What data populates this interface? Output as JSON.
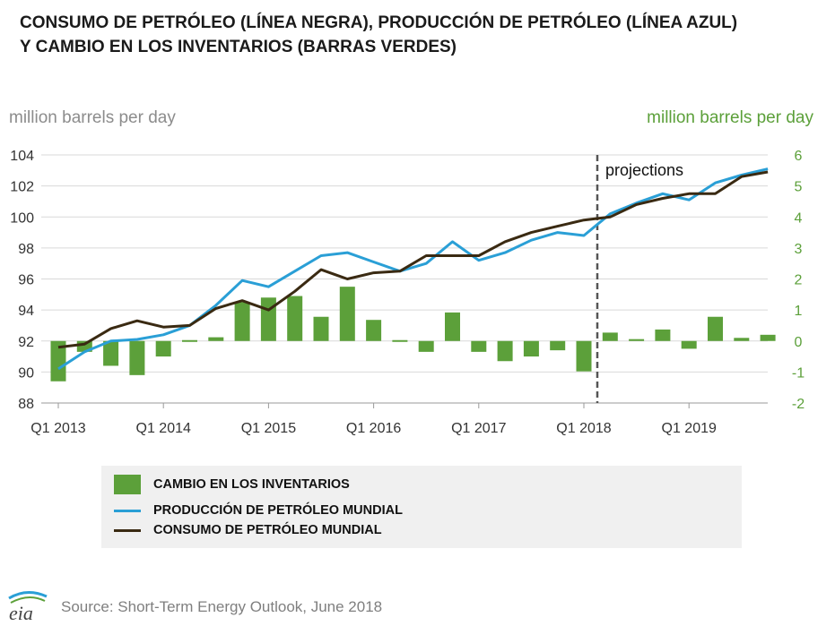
{
  "title": {
    "line1": "CONSUMO DE PETRÓLEO (LÍNEA NEGRA), PRODUCCIÓN DE PETRÓLEO (LÍNEA AZUL)",
    "line2": "Y CAMBIO EN LOS INVENTARIOS (BARRAS VERDES)"
  },
  "axes": {
    "left_unit": "million barrels per day",
    "right_unit": "million barrels per day"
  },
  "annotation": {
    "projections": "projections"
  },
  "legend": {
    "inventory": "CAMBIO EN LOS INVENTARIOS",
    "production": "PRODUCCIÓN DE PETRÓLEO MUNDIAL",
    "consumption": "CONSUMO DE PETRÓLEO MUNDIAL"
  },
  "source": "Source: Short-Term Energy Outlook, June 2018",
  "logo": {
    "text": "eia"
  },
  "colors": {
    "production": "#2a9fd6",
    "consumption": "#3a2a12",
    "inventory": "#5ca03a",
    "left_axis_text": "#8c8c8c",
    "right_axis_text": "#5ca03a",
    "projection_line": "#555555"
  },
  "chart_data": {
    "type": "bar+line",
    "x": [
      "Q1 2013",
      "Q2 2013",
      "Q3 2013",
      "Q4 2013",
      "Q1 2014",
      "Q2 2014",
      "Q3 2014",
      "Q4 2014",
      "Q1 2015",
      "Q2 2015",
      "Q3 2015",
      "Q4 2015",
      "Q1 2016",
      "Q2 2016",
      "Q3 2016",
      "Q4 2016",
      "Q1 2017",
      "Q2 2017",
      "Q3 2017",
      "Q4 2017",
      "Q1 2018",
      "Q2 2018",
      "Q3 2018",
      "Q4 2018",
      "Q1 2019",
      "Q2 2019",
      "Q3 2019",
      "Q4 2019"
    ],
    "x_tick_labels": [
      "Q1 2013",
      "Q1 2014",
      "Q1 2015",
      "Q1 2016",
      "Q1 2017",
      "Q1 2018",
      "Q1 2019"
    ],
    "y_left": {
      "ticks": [
        88,
        90,
        92,
        94,
        96,
        98,
        100,
        102,
        104
      ],
      "range": [
        88,
        104
      ]
    },
    "y_right": {
      "ticks": [
        -2,
        -1,
        0,
        1,
        2,
        3,
        4,
        5,
        6
      ],
      "range": [
        -2,
        6
      ]
    },
    "projection_start": "Q1 2018",
    "series": [
      {
        "name": "CAMBIO EN LOS INVENTARIOS",
        "type": "bar",
        "axis": "right",
        "values": [
          -1.3,
          -0.35,
          -0.8,
          -1.1,
          -0.5,
          0.0,
          0.12,
          1.25,
          1.4,
          1.45,
          0.78,
          1.75,
          0.68,
          0.0,
          -0.35,
          0.92,
          -0.35,
          -0.65,
          -0.5,
          -0.3,
          -0.98,
          0.27,
          0.06,
          0.37,
          -0.25,
          0.78,
          0.1,
          0.2
        ]
      },
      {
        "name": "PRODUCCIÓN DE PETRÓLEO MUNDIAL",
        "type": "line",
        "axis": "left",
        "values": [
          90.2,
          91.3,
          92.0,
          92.1,
          92.4,
          93.0,
          94.3,
          95.9,
          95.5,
          96.5,
          97.5,
          97.7,
          97.1,
          96.5,
          97.0,
          98.4,
          97.2,
          97.7,
          98.5,
          99.0,
          98.8,
          100.2,
          100.9,
          101.5,
          101.1,
          102.2,
          102.7,
          103.1
        ]
      },
      {
        "name": "CONSUMO DE PETRÓLEO MUNDIAL",
        "type": "line",
        "axis": "left",
        "values": [
          91.6,
          91.8,
          92.8,
          93.3,
          92.9,
          93.0,
          94.1,
          94.6,
          94.0,
          95.2,
          96.6,
          96.0,
          96.4,
          96.5,
          97.5,
          97.5,
          97.5,
          98.4,
          99.0,
          99.4,
          99.8,
          100.0,
          100.8,
          101.2,
          101.5,
          101.5,
          102.6,
          102.9
        ]
      }
    ]
  }
}
